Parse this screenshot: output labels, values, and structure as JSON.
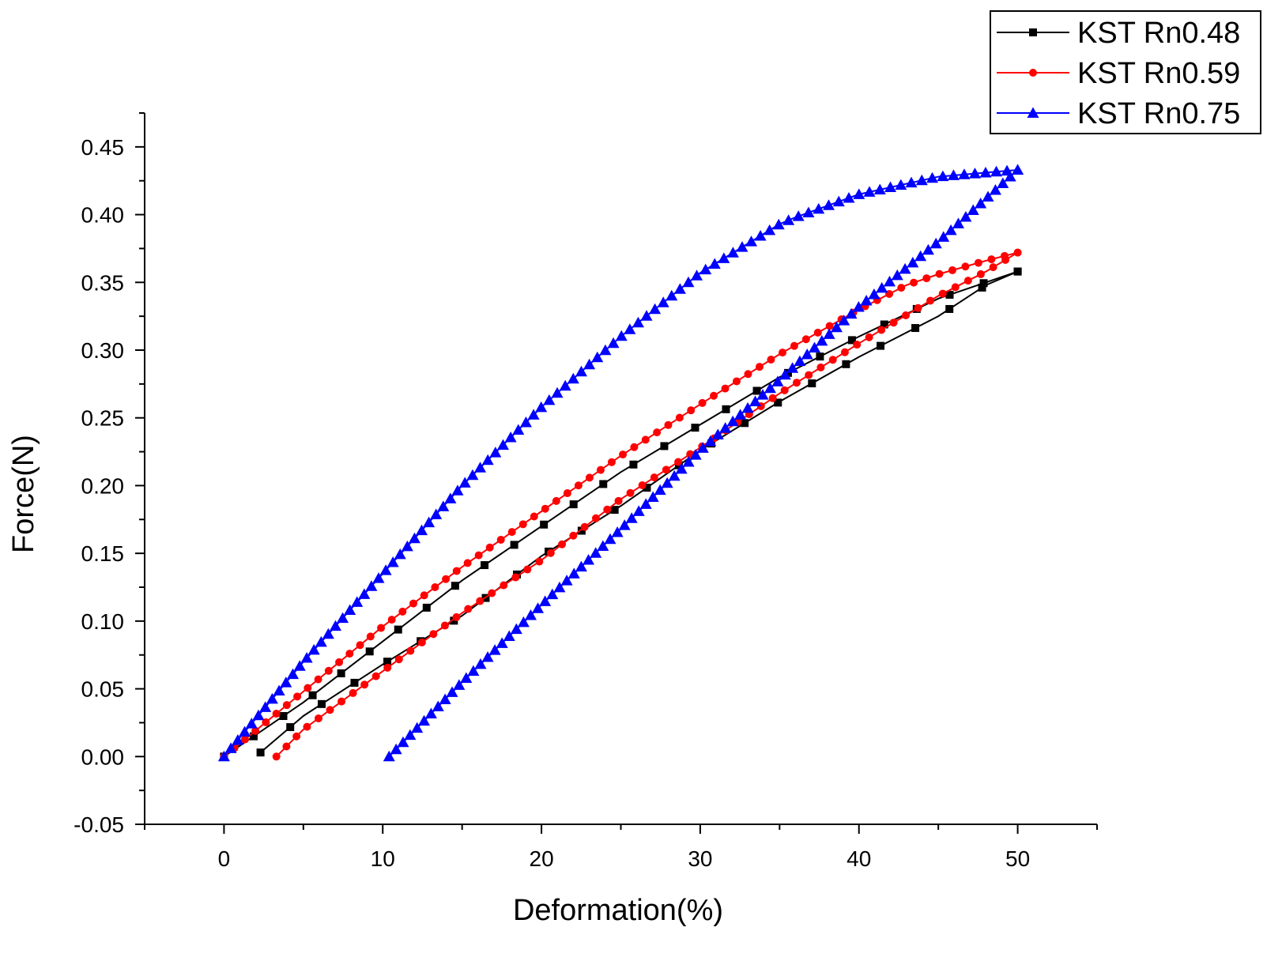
{
  "chart_data": {
    "type": "line",
    "title": "",
    "xlabel": "Deformation(%)",
    "ylabel": "Force(N)",
    "xlim": [
      -5,
      55
    ],
    "ylim": [
      -0.05,
      0.475
    ],
    "xticks": [
      0,
      10,
      20,
      30,
      40,
      50
    ],
    "yticks": [
      -0.05,
      0.0,
      0.05,
      0.1,
      0.15,
      0.2,
      0.25,
      0.3,
      0.35,
      0.4,
      0.45
    ],
    "xtick_labels": [
      "0",
      "10",
      "20",
      "30",
      "40",
      "50"
    ],
    "ytick_labels": [
      "-0.05",
      "0.00",
      "0.05",
      "0.10",
      "0.15",
      "0.20",
      "0.25",
      "0.30",
      "0.35",
      "0.40",
      "0.45"
    ],
    "grid": false,
    "legend_position": "top-right",
    "series": [
      {
        "name": "KST Rn0.48",
        "color": "#000000",
        "marker": "square",
        "loading": {
          "x": [
            0,
            5,
            10,
            15,
            20,
            25,
            30,
            35,
            40,
            45,
            48,
            50
          ],
          "y": [
            0.0,
            0.04,
            0.085,
            0.13,
            0.17,
            0.21,
            0.245,
            0.28,
            0.31,
            0.338,
            0.35,
            0.358
          ]
        },
        "unloading": {
          "x": [
            50,
            48,
            45,
            40,
            35,
            30,
            25,
            20,
            15,
            10,
            5,
            2.3
          ],
          "y": [
            0.358,
            0.348,
            0.325,
            0.295,
            0.262,
            0.226,
            0.185,
            0.148,
            0.104,
            0.068,
            0.03,
            0.003
          ]
        }
      },
      {
        "name": "KST Rn0.59",
        "color": "#ff0000",
        "marker": "circle",
        "loading": {
          "x": [
            0,
            5,
            10,
            15,
            20,
            25,
            30,
            35,
            40,
            43,
            45,
            48,
            50
          ],
          "y": [
            0.0,
            0.048,
            0.096,
            0.14,
            0.181,
            0.222,
            0.26,
            0.297,
            0.33,
            0.348,
            0.356,
            0.366,
            0.372
          ]
        },
        "unloading": {
          "x": [
            50,
            48,
            45,
            40,
            35,
            30,
            25,
            20,
            15,
            10,
            5,
            3.3
          ],
          "y": [
            0.372,
            0.358,
            0.34,
            0.305,
            0.268,
            0.228,
            0.19,
            0.145,
            0.106,
            0.063,
            0.02,
            0.0
          ]
        }
      },
      {
        "name": "KST Rn0.75",
        "color": "#0000ff",
        "marker": "triangle",
        "loading": {
          "x": [
            0,
            5,
            10,
            15,
            20,
            25,
            30,
            35,
            36,
            40,
            45,
            50
          ],
          "y": [
            0.0,
            0.07,
            0.135,
            0.2,
            0.258,
            0.31,
            0.357,
            0.393,
            0.398,
            0.415,
            0.428,
            0.433
          ]
        },
        "unloading": {
          "x": [
            50,
            45,
            40,
            35,
            30,
            25,
            20,
            15,
            10.4
          ],
          "y": [
            0.433,
            0.38,
            0.332,
            0.278,
            0.226,
            0.168,
            0.112,
            0.055,
            0.0
          ]
        }
      }
    ]
  }
}
